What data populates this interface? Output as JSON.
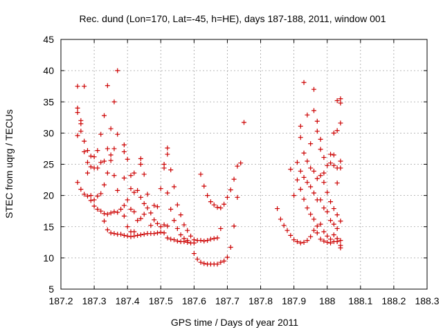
{
  "chart_data": {
    "type": "scatter",
    "title": "Rec. dund (Lon=170, Lat=-45, h=HE), days 187-188, 2011, window 001",
    "xlabel": "GPS time / Days of year 2011",
    "ylabel": "STEC from uqrg / TECUs",
    "xlim": [
      187.2,
      188.3
    ],
    "ylim": [
      5,
      45
    ],
    "xticks": [
      187.2,
      187.3,
      187.4,
      187.5,
      187.6,
      187.7,
      187.8,
      187.9,
      188.0,
      188.1,
      188.2,
      188.3
    ],
    "xtick_labels": [
      "187.2",
      "187.3",
      "187.4",
      "187.5",
      "187.6",
      "187.7",
      "187.8",
      "187.9",
      "188",
      "188.1",
      "188.2",
      "188.3"
    ],
    "yticks": [
      5,
      10,
      15,
      20,
      25,
      30,
      35,
      40,
      45
    ],
    "ytick_labels": [
      "5",
      "10",
      "15",
      "20",
      "25",
      "30",
      "35",
      "40",
      "45"
    ],
    "grid": true,
    "marker": "+",
    "series": [
      {
        "name": "STEC",
        "color": "#cc0000",
        "points": [
          [
            187.25,
            37.5
          ],
          [
            187.25,
            34.0
          ],
          [
            187.25,
            33.3
          ],
          [
            187.25,
            29.6
          ],
          [
            187.25,
            22.1
          ],
          [
            187.26,
            32.0
          ],
          [
            187.26,
            31.5
          ],
          [
            187.26,
            30.3
          ],
          [
            187.26,
            21.0
          ],
          [
            187.27,
            37.5
          ],
          [
            187.27,
            28.7
          ],
          [
            187.27,
            27.0
          ],
          [
            187.27,
            20.2
          ],
          [
            187.28,
            27.2
          ],
          [
            187.28,
            25.3
          ],
          [
            187.28,
            19.9
          ],
          [
            187.28,
            23.6
          ],
          [
            187.29,
            26.3
          ],
          [
            187.29,
            24.6
          ],
          [
            187.29,
            20.0
          ],
          [
            187.29,
            19.2
          ],
          [
            187.3,
            26.2
          ],
          [
            187.3,
            24.4
          ],
          [
            187.3,
            19.3
          ],
          [
            187.3,
            18.3
          ],
          [
            187.31,
            24.4
          ],
          [
            187.31,
            27.2
          ],
          [
            187.31,
            19.9
          ],
          [
            187.31,
            17.8
          ],
          [
            187.32,
            29.8
          ],
          [
            187.32,
            25.3
          ],
          [
            187.32,
            20.3
          ],
          [
            187.32,
            17.5
          ],
          [
            187.33,
            32.8
          ],
          [
            187.33,
            25.5
          ],
          [
            187.33,
            21.7
          ],
          [
            187.33,
            17.1
          ],
          [
            187.33,
            15.9
          ],
          [
            187.34,
            37.6
          ],
          [
            187.34,
            27.5
          ],
          [
            187.34,
            23.6
          ],
          [
            187.34,
            17.0
          ],
          [
            187.34,
            14.5
          ],
          [
            187.35,
            30.7
          ],
          [
            187.35,
            26.5
          ],
          [
            187.35,
            25.6
          ],
          [
            187.35,
            17.2
          ],
          [
            187.35,
            14.0
          ],
          [
            187.36,
            35.0
          ],
          [
            187.36,
            27.5
          ],
          [
            187.36,
            23.2
          ],
          [
            187.36,
            17.4
          ],
          [
            187.36,
            13.9
          ],
          [
            187.37,
            40.0
          ],
          [
            187.37,
            29.8
          ],
          [
            187.37,
            20.8
          ],
          [
            187.37,
            17.3
          ],
          [
            187.37,
            13.8
          ],
          [
            187.38,
            17.8
          ],
          [
            187.38,
            13.8
          ],
          [
            187.39,
            28.1
          ],
          [
            187.39,
            27.0
          ],
          [
            187.39,
            22.8
          ],
          [
            187.39,
            18.4
          ],
          [
            187.39,
            16.7
          ],
          [
            187.39,
            13.6
          ],
          [
            187.4,
            25.8
          ],
          [
            187.4,
            19.3
          ],
          [
            187.4,
            15.0
          ],
          [
            187.4,
            13.5
          ],
          [
            187.41,
            23.2
          ],
          [
            187.41,
            21.1
          ],
          [
            187.41,
            17.8
          ],
          [
            187.41,
            14.2
          ],
          [
            187.41,
            13.4
          ],
          [
            187.42,
            23.6
          ],
          [
            187.42,
            20.5
          ],
          [
            187.42,
            17.4
          ],
          [
            187.42,
            14.2
          ],
          [
            187.42,
            13.5
          ],
          [
            187.43,
            20.8
          ],
          [
            187.43,
            16.0
          ],
          [
            187.43,
            13.6
          ],
          [
            187.44,
            25.9
          ],
          [
            187.44,
            25.0
          ],
          [
            187.44,
            19.7
          ],
          [
            187.44,
            16.3
          ],
          [
            187.44,
            13.7
          ],
          [
            187.45,
            23.4
          ],
          [
            187.45,
            18.7
          ],
          [
            187.45,
            17.0
          ],
          [
            187.45,
            13.8
          ],
          [
            187.46,
            20.2
          ],
          [
            187.46,
            18.0
          ],
          [
            187.46,
            13.9
          ],
          [
            187.47,
            17.2
          ],
          [
            187.47,
            15.2
          ],
          [
            187.47,
            13.9
          ],
          [
            187.48,
            18.4
          ],
          [
            187.48,
            16.1
          ],
          [
            187.48,
            13.9
          ],
          [
            187.49,
            18.2
          ],
          [
            187.49,
            15.5
          ],
          [
            187.49,
            14.0
          ],
          [
            187.5,
            21.1
          ],
          [
            187.5,
            15.0
          ],
          [
            187.5,
            14.1
          ],
          [
            187.51,
            25.0
          ],
          [
            187.51,
            24.4
          ],
          [
            187.51,
            15.3
          ],
          [
            187.51,
            14.0
          ],
          [
            187.52,
            27.6
          ],
          [
            187.52,
            26.6
          ],
          [
            187.52,
            20.4
          ],
          [
            187.52,
            15.1
          ],
          [
            187.52,
            13.2
          ],
          [
            187.53,
            24.1
          ],
          [
            187.53,
            17.8
          ],
          [
            187.53,
            13.0
          ],
          [
            187.54,
            21.4
          ],
          [
            187.54,
            16.0
          ],
          [
            187.54,
            12.9
          ],
          [
            187.55,
            18.5
          ],
          [
            187.55,
            14.7
          ],
          [
            187.55,
            12.7
          ],
          [
            187.56,
            16.9
          ],
          [
            187.56,
            13.7
          ],
          [
            187.56,
            12.6
          ],
          [
            187.57,
            15.3
          ],
          [
            187.57,
            13.1
          ],
          [
            187.57,
            12.6
          ],
          [
            187.58,
            14.4
          ],
          [
            187.58,
            12.8
          ],
          [
            187.58,
            12.5
          ],
          [
            187.59,
            13.5
          ],
          [
            187.59,
            12.4
          ],
          [
            187.6,
            12.9
          ],
          [
            187.6,
            12.4
          ],
          [
            187.6,
            10.7
          ],
          [
            187.61,
            12.8
          ],
          [
            187.61,
            9.8
          ],
          [
            187.62,
            23.4
          ],
          [
            187.62,
            12.8
          ],
          [
            187.62,
            9.3
          ],
          [
            187.63,
            21.5
          ],
          [
            187.63,
            12.7
          ],
          [
            187.63,
            9.1
          ],
          [
            187.64,
            20.0
          ],
          [
            187.64,
            12.8
          ],
          [
            187.64,
            9.0
          ],
          [
            187.65,
            19.0
          ],
          [
            187.65,
            13.0
          ],
          [
            187.65,
            9.0
          ],
          [
            187.66,
            18.5
          ],
          [
            187.66,
            13.1
          ],
          [
            187.66,
            9.0
          ],
          [
            187.67,
            18.1
          ],
          [
            187.67,
            13.2
          ],
          [
            187.67,
            9.0
          ],
          [
            187.68,
            18.0
          ],
          [
            187.68,
            14.7
          ],
          [
            187.68,
            9.3
          ],
          [
            187.69,
            18.6
          ],
          [
            187.69,
            9.5
          ],
          [
            187.7,
            19.7
          ],
          [
            187.7,
            10.1
          ],
          [
            187.71,
            20.9
          ],
          [
            187.71,
            11.7
          ],
          [
            187.72,
            22.6
          ],
          [
            187.72,
            15.1
          ],
          [
            187.73,
            19.7
          ],
          [
            187.73,
            24.7
          ],
          [
            187.74,
            25.2
          ],
          [
            187.75,
            31.7
          ],
          [
            187.85,
            17.9
          ],
          [
            187.86,
            16.2
          ],
          [
            187.87,
            15.2
          ],
          [
            187.88,
            14.4
          ],
          [
            187.89,
            13.6
          ],
          [
            187.89,
            24.2
          ],
          [
            187.9,
            12.9
          ],
          [
            187.9,
            20.0
          ],
          [
            187.91,
            12.6
          ],
          [
            187.91,
            22.5
          ],
          [
            187.91,
            25.3
          ],
          [
            187.92,
            12.4
          ],
          [
            187.92,
            21.0
          ],
          [
            187.92,
            23.9
          ],
          [
            187.92,
            29.3
          ],
          [
            187.92,
            31.1
          ],
          [
            187.93,
            12.5
          ],
          [
            187.93,
            19.4
          ],
          [
            187.93,
            22.9
          ],
          [
            187.93,
            26.8
          ],
          [
            187.93,
            38.1
          ],
          [
            187.94,
            12.8
          ],
          [
            187.94,
            18.0
          ],
          [
            187.94,
            22.1
          ],
          [
            187.94,
            25.5
          ],
          [
            187.94,
            32.9
          ],
          [
            187.95,
            13.4
          ],
          [
            187.95,
            17.0
          ],
          [
            187.95,
            21.4
          ],
          [
            187.95,
            24.4
          ],
          [
            187.95,
            28.3
          ],
          [
            187.96,
            14.4
          ],
          [
            187.96,
            16.2
          ],
          [
            187.96,
            20.4
          ],
          [
            187.96,
            23.9
          ],
          [
            187.96,
            33.6
          ],
          [
            187.96,
            37.0
          ],
          [
            187.97,
            14.0
          ],
          [
            187.97,
            15.1
          ],
          [
            187.97,
            19.3
          ],
          [
            187.97,
            22.7
          ],
          [
            187.97,
            30.3
          ],
          [
            187.97,
            31.9
          ],
          [
            187.98,
            13.0
          ],
          [
            187.98,
            15.4
          ],
          [
            187.98,
            19.3
          ],
          [
            187.98,
            23.2
          ],
          [
            187.98,
            27.4
          ],
          [
            187.98,
            29.0
          ],
          [
            187.99,
            12.7
          ],
          [
            187.99,
            14.2
          ],
          [
            187.99,
            18.0
          ],
          [
            187.99,
            22.1
          ],
          [
            187.99,
            23.6
          ],
          [
            187.99,
            26.1
          ],
          [
            188.0,
            12.5
          ],
          [
            188.0,
            13.5
          ],
          [
            188.0,
            17.4
          ],
          [
            188.0,
            20.5
          ],
          [
            188.0,
            24.8
          ],
          [
            188.01,
            12.4
          ],
          [
            188.01,
            13.0
          ],
          [
            188.01,
            16.0
          ],
          [
            188.01,
            19.0
          ],
          [
            188.01,
            25.2
          ],
          [
            188.01,
            26.6
          ],
          [
            188.02,
            12.6
          ],
          [
            188.02,
            13.7
          ],
          [
            188.02,
            15.4
          ],
          [
            188.02,
            17.9
          ],
          [
            188.02,
            24.8
          ],
          [
            188.02,
            26.5
          ],
          [
            188.02,
            30.0
          ],
          [
            188.03,
            12.6
          ],
          [
            188.03,
            13.1
          ],
          [
            188.03,
            14.7
          ],
          [
            188.03,
            16.9
          ],
          [
            188.03,
            22.0
          ],
          [
            188.03,
            24.4
          ],
          [
            188.03,
            30.4
          ],
          [
            188.03,
            35.2
          ],
          [
            188.04,
            11.6
          ],
          [
            188.04,
            12.0
          ],
          [
            188.04,
            12.8
          ],
          [
            188.04,
            15.9
          ],
          [
            188.04,
            24.4
          ],
          [
            188.04,
            25.5
          ],
          [
            188.04,
            31.6
          ],
          [
            188.04,
            34.8
          ],
          [
            188.04,
            35.5
          ]
        ]
      }
    ]
  }
}
